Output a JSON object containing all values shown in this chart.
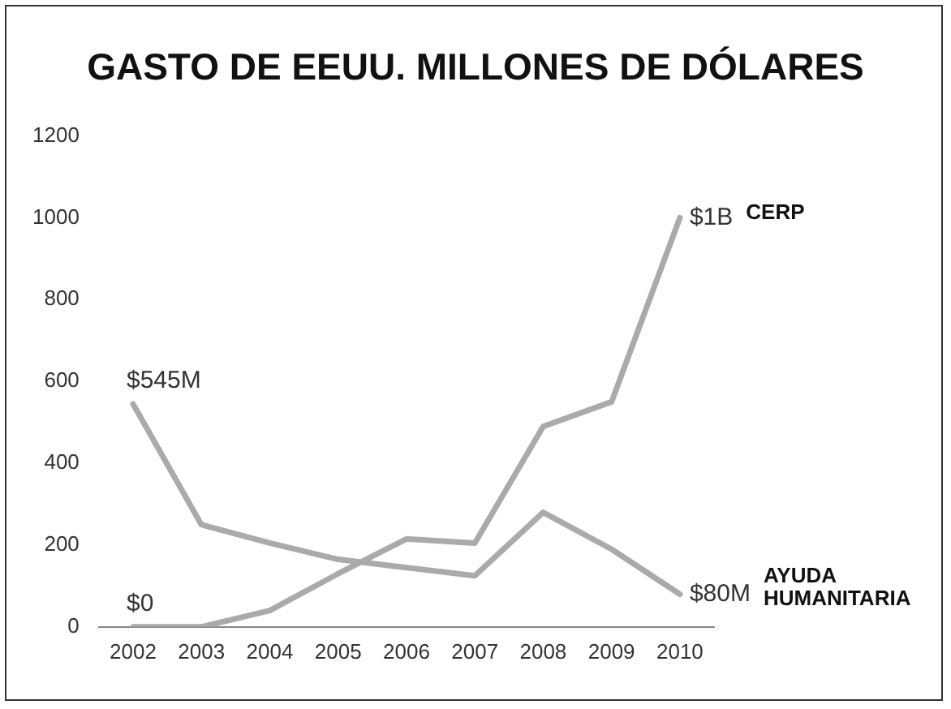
{
  "chart_data": {
    "type": "line",
    "title": "GASTO DE EEUU. MILLONES DE DÓLARES",
    "categories": [
      "2002",
      "2003",
      "2004",
      "2005",
      "2006",
      "2007",
      "2008",
      "2009",
      "2010"
    ],
    "series": [
      {
        "name": "CERP",
        "color": "#aaaaaa",
        "values": [
          0,
          0,
          40,
          130,
          215,
          205,
          490,
          550,
          1000
        ]
      },
      {
        "name": "AYUDA HUMANITARIA",
        "color": "#aaaaaa",
        "values": [
          545,
          250,
          205,
          165,
          145,
          125,
          280,
          190,
          80
        ]
      }
    ],
    "ylim": [
      0,
      1200
    ],
    "yticks": [
      0,
      200,
      400,
      600,
      800,
      1000,
      1200
    ],
    "grid": false,
    "legend": false,
    "marker": "none",
    "line_style": "solid",
    "annotations": [
      {
        "text": "$545M",
        "x": "2002",
        "y": 545
      },
      {
        "text": "$0",
        "x": "2002",
        "y": 0
      },
      {
        "text": "$1B",
        "x": "2010",
        "y": 1000
      },
      {
        "text": "$80M",
        "x": "2010",
        "y": 80
      }
    ]
  }
}
